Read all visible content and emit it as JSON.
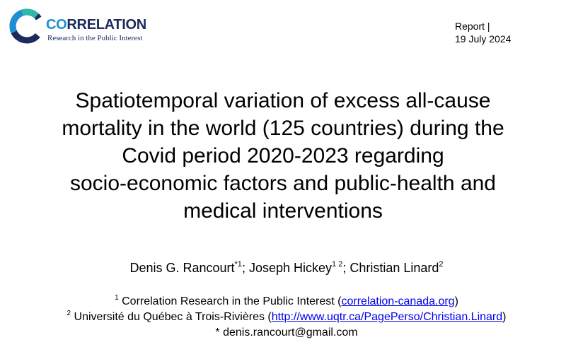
{
  "brand": {
    "name_part1": "CO",
    "name_part2": "RRELATION",
    "tagline": "Research in the Public Interest",
    "colors": {
      "accent_blue": "#1e8fd0",
      "dark_navy": "#1b2b5c",
      "teal": "#2fb7a8"
    }
  },
  "report": {
    "label": "Report |",
    "date": "19 July 2024"
  },
  "title_lines": [
    "Spatiotemporal variation of excess all-cause",
    "mortality in the world (125 countries) during the",
    "Covid period 2020-2023 regarding",
    "socio-economic factors and public-health and",
    "medical interventions"
  ],
  "authors": [
    {
      "name": "Denis G. Rancourt",
      "sup": "*1",
      "sep": "; "
    },
    {
      "name": "Joseph Hickey",
      "sup": "1 2",
      "sep": "; "
    },
    {
      "name": "Christian Linard",
      "sup": "2",
      "sep": ""
    }
  ],
  "affiliations": [
    {
      "sup": "1",
      "text": "Correlation Research in the Public Interest (",
      "link": "correlation-canada.org",
      "close": ")"
    },
    {
      "sup": "2",
      "text": "Université du Québec à Trois-Rivières (",
      "link": "http://www.uqtr.ca/PagePerso/Christian.Linard",
      "close": ")"
    }
  ],
  "contact": {
    "marker": "*",
    "email": "denis.rancourt@gmail.com"
  }
}
